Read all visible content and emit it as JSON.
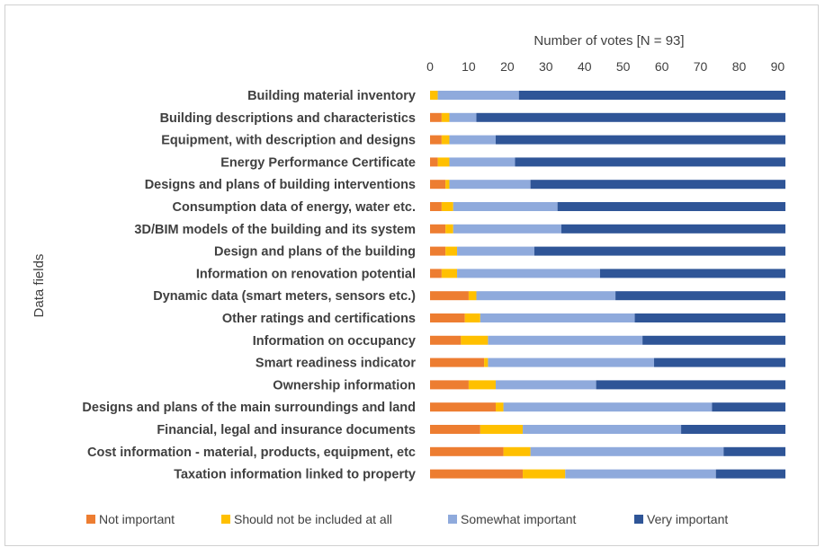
{
  "chart_data": {
    "type": "bar",
    "orientation": "horizontal",
    "stacked": true,
    "xlabel": "Number of votes [N = 93]",
    "ylabel": "Data fields",
    "xlim": [
      0,
      92
    ],
    "xticks": [
      0,
      10,
      20,
      30,
      40,
      50,
      60,
      70,
      80,
      90
    ],
    "grid": false,
    "legend_position": "bottom",
    "categories": [
      "Building material inventory",
      "Building descriptions and characteristics",
      "Equipment, with description and designs",
      "Energy Performance Certificate",
      "Designs and plans of building interventions",
      "Consumption data of energy, water etc.",
      "3D/BIM models of the building and its system",
      "Design and plans of the building",
      "Information on renovation potential",
      "Dynamic data (smart meters, sensors etc.)",
      "Other ratings and certifications",
      "Information on occupancy",
      "Smart readiness indicator",
      "Ownership information",
      "Designs and plans of the main surroundings and land",
      "Financial, legal and insurance documents",
      "Cost information - material, products, equipment, etc",
      "Taxation information linked to property"
    ],
    "series": [
      {
        "name": "Not important",
        "color": "#ED7D31",
        "values": [
          0,
          3,
          3,
          2,
          4,
          3,
          4,
          4,
          3,
          10,
          9,
          8,
          14,
          10,
          17,
          13,
          19,
          24
        ]
      },
      {
        "name": "Should not be included at all",
        "color": "#FFC000",
        "values": [
          2,
          2,
          2,
          3,
          1,
          3,
          2,
          3,
          4,
          2,
          4,
          7,
          1,
          7,
          2,
          11,
          7,
          11
        ]
      },
      {
        "name": "Somewhat important",
        "color": "#8FAADC",
        "values": [
          21,
          7,
          12,
          17,
          21,
          27,
          28,
          20,
          37,
          36,
          40,
          40,
          43,
          26,
          54,
          41,
          50,
          39
        ]
      },
      {
        "name": "Very important",
        "color": "#2F5597",
        "values": [
          69,
          80,
          75,
          70,
          66,
          59,
          58,
          65,
          48,
          44,
          39,
          37,
          34,
          49,
          19,
          27,
          16,
          18
        ]
      }
    ]
  }
}
